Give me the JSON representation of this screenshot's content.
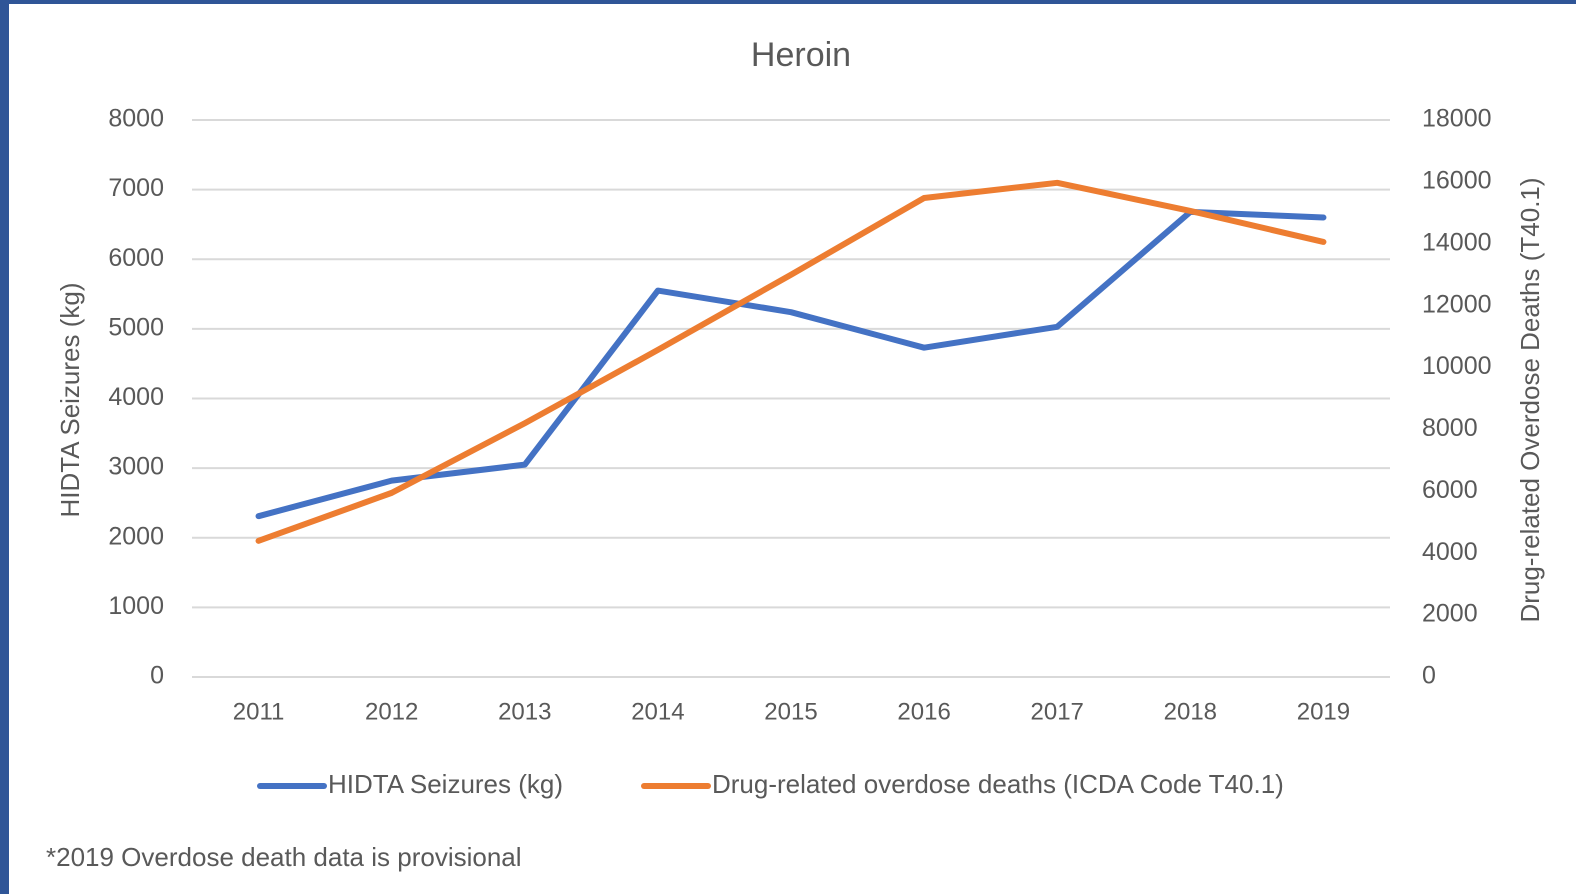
{
  "chart_data": {
    "type": "line",
    "title": "Heroin",
    "categories": [
      "2011",
      "2012",
      "2013",
      "2014",
      "2015",
      "2016",
      "2017",
      "2018",
      "2019"
    ],
    "series": [
      {
        "name": "HIDTA Seizures (kg)",
        "color": "#4472c4",
        "values": [
          2310,
          2820,
          3050,
          5550,
          5240,
          4730,
          5030,
          6680,
          6600
        ]
      },
      {
        "name": "Drug-related overdose deaths (ICDA Code T40.1)",
        "color": "#ed7d31",
        "axis": "y2",
        "values": [
          4400,
          5950,
          8200,
          10570,
          13000,
          15480,
          15970,
          15060,
          14060
        ]
      }
    ],
    "y_label": "HIDTA Seizures (kg)",
    "y2_label": "Drug-related Overdose Deaths (T40.1)",
    "ylim": [
      0,
      8000
    ],
    "yticks": [
      0,
      1000,
      2000,
      3000,
      4000,
      5000,
      6000,
      7000,
      8000
    ],
    "y2lim": [
      0,
      18000
    ],
    "y2ticks": [
      0,
      2000,
      4000,
      6000,
      8000,
      10000,
      12000,
      14000,
      16000,
      18000
    ],
    "grid": true,
    "legend": "bottom",
    "note": "*2019 Overdose death data is provisional"
  }
}
